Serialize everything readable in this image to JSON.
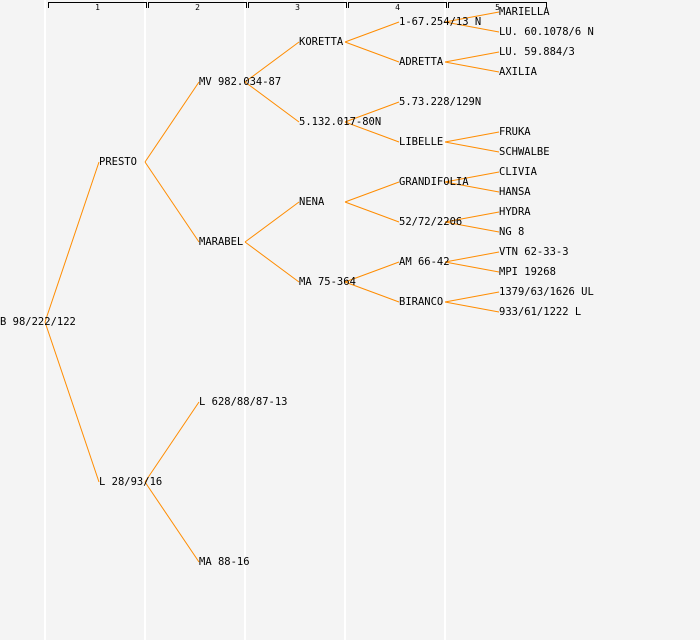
{
  "generation_headers": [
    "1",
    "2",
    "3",
    "4",
    "5"
  ],
  "line_color": "#ff8c00",
  "tree": {
    "name": "B 98/222/122",
    "children": [
      {
        "name": "PRESTO",
        "children": [
          {
            "name": "MV 982.034-87",
            "children": [
              {
                "name": "KORETTA",
                "children": [
                  {
                    "name": "1-67.254/13 N",
                    "children": [
                      {
                        "name": "MARIELLA"
                      },
                      {
                        "name": "LU. 60.1078/6 N"
                      }
                    ]
                  },
                  {
                    "name": "ADRETTA",
                    "children": [
                      {
                        "name": "LU. 59.884/3"
                      },
                      {
                        "name": "AXILIA"
                      }
                    ]
                  }
                ]
              },
              {
                "name": "5.132.017-80N",
                "children": [
                  {
                    "name": "5.73.228/129N"
                  },
                  {
                    "name": "LIBELLE",
                    "children": [
                      {
                        "name": "FRUKA"
                      },
                      {
                        "name": "SCHWALBE"
                      }
                    ]
                  }
                ]
              }
            ]
          },
          {
            "name": "MARABEL",
            "children": [
              {
                "name": "NENA",
                "children": [
                  {
                    "name": "GRANDIFOLIA",
                    "children": [
                      {
                        "name": "CLIVIA"
                      },
                      {
                        "name": "HANSA"
                      }
                    ]
                  },
                  {
                    "name": "52/72/2206",
                    "children": [
                      {
                        "name": "HYDRA"
                      },
                      {
                        "name": "NG 8"
                      }
                    ]
                  }
                ]
              },
              {
                "name": "MA 75-364",
                "children": [
                  {
                    "name": "AM 66-42",
                    "children": [
                      {
                        "name": "VTN 62-33-3"
                      },
                      {
                        "name": "MPI 19268"
                      }
                    ]
                  },
                  {
                    "name": "BIRANCO",
                    "children": [
                      {
                        "name": "1379/63/1626 UL"
                      },
                      {
                        "name": "933/61/1222 L"
                      }
                    ]
                  }
                ]
              }
            ]
          }
        ]
      },
      {
        "name": "L 28/93/16",
        "children": [
          {
            "name": "L 628/88/87-13"
          },
          {
            "name": "MA 88-16"
          }
        ]
      }
    ]
  }
}
